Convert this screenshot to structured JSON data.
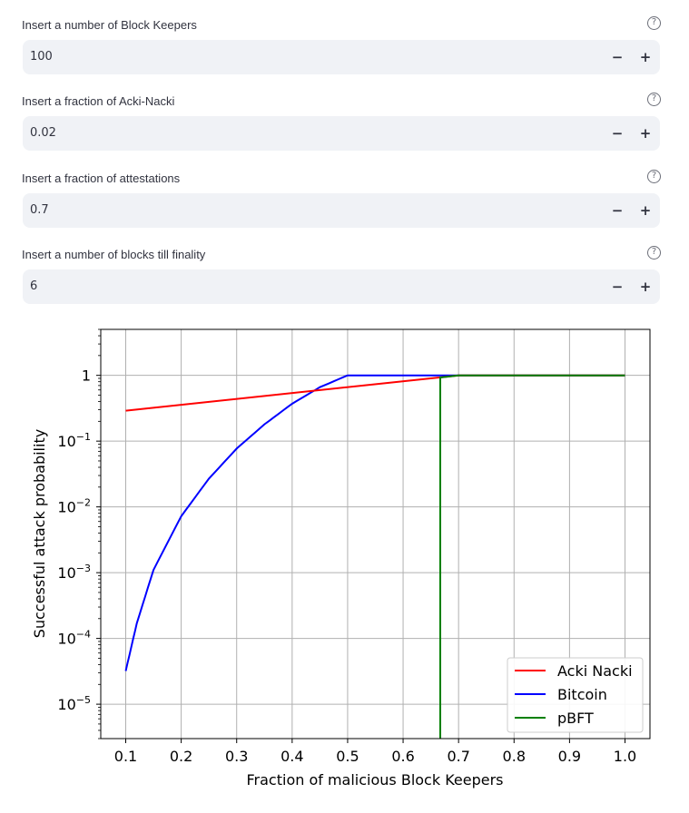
{
  "inputs": [
    {
      "label": "Insert a number of Block Keepers",
      "value": "100",
      "minus": "−",
      "plus": "+",
      "help": "?"
    },
    {
      "label": "Insert a fraction of Acki-Nacki",
      "value": "0.02",
      "minus": "−",
      "plus": "+",
      "help": "?"
    },
    {
      "label": "Insert a fraction of attestations",
      "value": "0.7",
      "minus": "−",
      "plus": "+",
      "help": "?"
    },
    {
      "label": "Insert a number of blocks till finality",
      "value": "6",
      "minus": "−",
      "plus": "+",
      "help": "?"
    }
  ],
  "chart_data": {
    "type": "line",
    "xlabel": "Fraction of malicious Block Keepers",
    "ylabel": "Successful attack probability",
    "x_ticks": [
      "0.1",
      "0.2",
      "0.3",
      "0.4",
      "0.5",
      "0.6",
      "0.7",
      "0.8",
      "0.9",
      "1.0"
    ],
    "y_ticks": [
      {
        "value": 1,
        "label": "1"
      },
      {
        "value": 0.1,
        "base": "10",
        "exp": "−1"
      },
      {
        "value": 0.01,
        "base": "10",
        "exp": "−2"
      },
      {
        "value": 0.001,
        "base": "10",
        "exp": "−3"
      },
      {
        "value": 0.0001,
        "base": "10",
        "exp": "−4"
      },
      {
        "value": 1e-05,
        "base": "10",
        "exp": "−5"
      }
    ],
    "y_scale": "log",
    "xlim": [
      0.055,
      1.045
    ],
    "ylim": [
      3e-06,
      5
    ],
    "grid": true,
    "legend_position": "bottom-right",
    "series": [
      {
        "name": "Acki Nacki",
        "color": "#ff0000",
        "x": [
          0.1,
          0.7,
          1.0
        ],
        "y": [
          0.29,
          1.0,
          1.0
        ]
      },
      {
        "name": "Bitcoin",
        "color": "#0000ff",
        "x": [
          0.1,
          0.12,
          0.15,
          0.2,
          0.25,
          0.3,
          0.35,
          0.4,
          0.45,
          0.5,
          1.0
        ],
        "y": [
          3.2e-05,
          0.00017,
          0.0011,
          0.0072,
          0.027,
          0.077,
          0.18,
          0.37,
          0.66,
          1.0,
          1.0
        ]
      },
      {
        "name": "pBFT",
        "color": "#008000",
        "x": [
          0.667,
          0.667,
          0.7,
          1.0
        ],
        "y": [
          3e-06,
          0.93,
          1.0,
          1.0
        ]
      }
    ]
  }
}
